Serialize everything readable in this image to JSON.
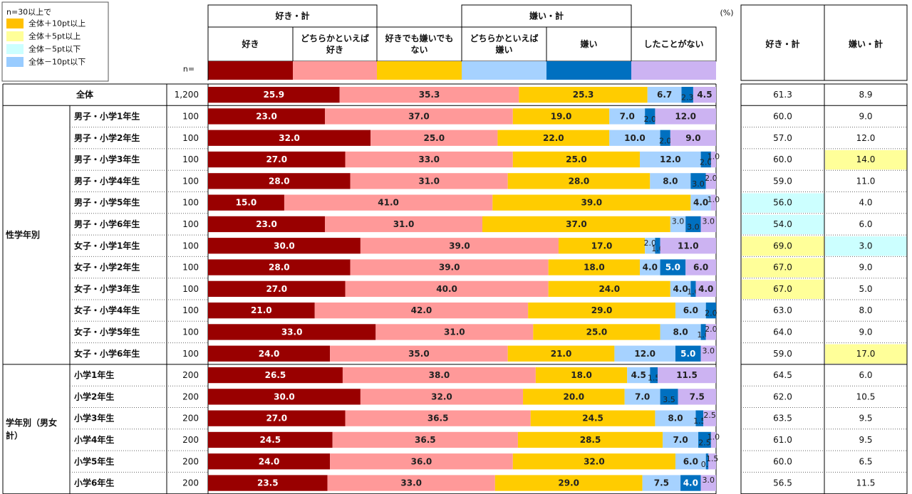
{
  "colors": {
    "like": "#990000",
    "somewhat_like": "#FF9999",
    "neither": "#FFCC00",
    "somewhat_dislike": "#A6D2FF",
    "dislike": "#0070C0",
    "never": "#CCB3F2",
    "hl_plus10": "#FFC000",
    "hl_plus5": "#FFFF99",
    "hl_minus5": "#CCFFFF",
    "hl_minus10": "#99CCFF"
  },
  "legend": {
    "title": "n=30以上で",
    "items": [
      {
        "label": "全体＋10pt以上",
        "color_key": "hl_plus10"
      },
      {
        "label": "全体＋5pt以上",
        "color_key": "hl_plus5"
      },
      {
        "label": "全体－5pt以下",
        "color_key": "hl_minus5"
      },
      {
        "label": "全体－10pt以下",
        "color_key": "hl_minus10"
      }
    ]
  },
  "header": {
    "n_label": "n=",
    "percent_unit": "(%)",
    "group_like": "好き・計",
    "group_dislike": "嫌い・計",
    "summary_headers": [
      "好き・計",
      "嫌い・計"
    ]
  },
  "chart_data": {
    "type": "bar",
    "orientation": "horizontal",
    "stacked": "100%",
    "unit": "%",
    "xlim": [
      0,
      100
    ],
    "series": [
      {
        "name": "好き",
        "color_key": "like",
        "label_color": "#ffffff"
      },
      {
        "name": "どちらかといえば好き",
        "color_key": "somewhat_like",
        "label_color": "#222222"
      },
      {
        "name": "好きでも嫌いでもない",
        "color_key": "neither",
        "label_color": "#222222"
      },
      {
        "name": "どちらかといえば嫌い",
        "color_key": "somewhat_dislike",
        "label_color": "#222222"
      },
      {
        "name": "嫌い",
        "color_key": "dislike",
        "label_color": "#ffffff"
      },
      {
        "name": "したことがない",
        "color_key": "never",
        "label_color": "#222222"
      }
    ],
    "column_headers": [
      [
        "好き"
      ],
      [
        "どちらかといえば",
        "好き"
      ],
      [
        "好きでも嫌いでも",
        "ない"
      ],
      [
        "どちらかといえば",
        "嫌い"
      ],
      [
        "嫌い"
      ],
      [
        "したことがない"
      ]
    ],
    "groups": [
      {
        "label": "",
        "rows": [
          0
        ]
      },
      {
        "label": "性学年別",
        "rows": [
          1,
          2,
          3,
          4,
          5,
          6,
          7,
          8,
          9,
          10,
          11,
          12
        ]
      },
      {
        "label": "学年別（男女計）",
        "rows": [
          13,
          14,
          15,
          16,
          17,
          18
        ]
      }
    ],
    "rows": [
      {
        "label": "全体",
        "n": "1,200",
        "values": [
          25.9,
          35.3,
          25.3,
          6.7,
          2.3,
          4.5
        ],
        "like_total": "61.3",
        "dislike_total": "8.9",
        "like_hl": "",
        "dislike_hl": ""
      },
      {
        "label": "男子・小学1年生",
        "n": "100",
        "values": [
          23.0,
          37.0,
          19.0,
          7.0,
          2.0,
          12.0
        ],
        "like_total": "60.0",
        "dislike_total": "9.0",
        "like_hl": "",
        "dislike_hl": ""
      },
      {
        "label": "男子・小学2年生",
        "n": "100",
        "values": [
          32.0,
          25.0,
          22.0,
          10.0,
          2.0,
          9.0
        ],
        "like_total": "57.0",
        "dislike_total": "12.0",
        "like_hl": "",
        "dislike_hl": ""
      },
      {
        "label": "男子・小学3年生",
        "n": "100",
        "values": [
          27.0,
          33.0,
          25.0,
          12.0,
          2.0,
          1.0
        ],
        "like_total": "60.0",
        "dislike_total": "14.0",
        "like_hl": "",
        "dislike_hl": "hl_plus5"
      },
      {
        "label": "男子・小学4年生",
        "n": "100",
        "values": [
          28.0,
          31.0,
          28.0,
          8.0,
          3.0,
          2.0
        ],
        "like_total": "59.0",
        "dislike_total": "11.0",
        "like_hl": "",
        "dislike_hl": ""
      },
      {
        "label": "男子・小学5年生",
        "n": "100",
        "values": [
          15.0,
          41.0,
          39.0,
          4.0,
          0.0,
          1.0
        ],
        "like_total": "56.0",
        "dislike_total": "4.0",
        "like_hl": "hl_minus5",
        "dislike_hl": ""
      },
      {
        "label": "男子・小学6年生",
        "n": "100",
        "values": [
          23.0,
          31.0,
          37.0,
          3.0,
          3.0,
          3.0
        ],
        "like_total": "54.0",
        "dislike_total": "6.0",
        "like_hl": "hl_minus5",
        "dislike_hl": ""
      },
      {
        "label": "女子・小学1年生",
        "n": "100",
        "values": [
          30.0,
          39.0,
          17.0,
          2.0,
          1.0,
          11.0
        ],
        "like_total": "69.0",
        "dislike_total": "3.0",
        "like_hl": "hl_plus5",
        "dislike_hl": "hl_minus5"
      },
      {
        "label": "女子・小学2年生",
        "n": "100",
        "values": [
          28.0,
          39.0,
          18.0,
          4.0,
          5.0,
          6.0
        ],
        "like_total": "67.0",
        "dislike_total": "9.0",
        "like_hl": "hl_plus5",
        "dislike_hl": ""
      },
      {
        "label": "女子・小学3年生",
        "n": "100",
        "values": [
          27.0,
          40.0,
          24.0,
          4.0,
          1.0,
          4.0
        ],
        "like_total": "67.0",
        "dislike_total": "5.0",
        "like_hl": "hl_plus5",
        "dislike_hl": ""
      },
      {
        "label": "女子・小学4年生",
        "n": "100",
        "values": [
          21.0,
          42.0,
          29.0,
          6.0,
          2.0,
          0.0
        ],
        "like_total": "63.0",
        "dislike_total": "8.0",
        "like_hl": "",
        "dislike_hl": ""
      },
      {
        "label": "女子・小学5年生",
        "n": "100",
        "values": [
          33.0,
          31.0,
          25.0,
          8.0,
          1.0,
          2.0
        ],
        "like_total": "64.0",
        "dislike_total": "9.0",
        "like_hl": "",
        "dislike_hl": ""
      },
      {
        "label": "女子・小学6年生",
        "n": "100",
        "values": [
          24.0,
          35.0,
          21.0,
          12.0,
          5.0,
          3.0
        ],
        "like_total": "59.0",
        "dislike_total": "17.0",
        "like_hl": "",
        "dislike_hl": "hl_plus5"
      },
      {
        "label": "小学1年生",
        "n": "200",
        "values": [
          26.5,
          38.0,
          18.0,
          4.5,
          1.5,
          11.5
        ],
        "like_total": "64.5",
        "dislike_total": "6.0",
        "like_hl": "",
        "dislike_hl": ""
      },
      {
        "label": "小学2年生",
        "n": "200",
        "values": [
          30.0,
          32.0,
          20.0,
          7.0,
          3.5,
          7.5
        ],
        "like_total": "62.0",
        "dislike_total": "10.5",
        "like_hl": "",
        "dislike_hl": ""
      },
      {
        "label": "小学3年生",
        "n": "200",
        "values": [
          27.0,
          36.5,
          24.5,
          8.0,
          1.5,
          2.5
        ],
        "like_total": "63.5",
        "dislike_total": "9.5",
        "like_hl": "",
        "dislike_hl": ""
      },
      {
        "label": "小学4年生",
        "n": "200",
        "values": [
          24.5,
          36.5,
          28.5,
          7.0,
          2.5,
          1.0
        ],
        "like_total": "61.0",
        "dislike_total": "9.5",
        "like_hl": "",
        "dislike_hl": ""
      },
      {
        "label": "小学5年生",
        "n": "200",
        "values": [
          24.0,
          36.0,
          32.0,
          6.0,
          0.5,
          1.5
        ],
        "like_total": "60.0",
        "dislike_total": "6.5",
        "like_hl": "",
        "dislike_hl": ""
      },
      {
        "label": "小学6年生",
        "n": "200",
        "values": [
          23.5,
          33.0,
          29.0,
          7.5,
          4.0,
          3.0
        ],
        "like_total": "56.5",
        "dislike_total": "11.5",
        "like_hl": "",
        "dislike_hl": ""
      }
    ]
  }
}
